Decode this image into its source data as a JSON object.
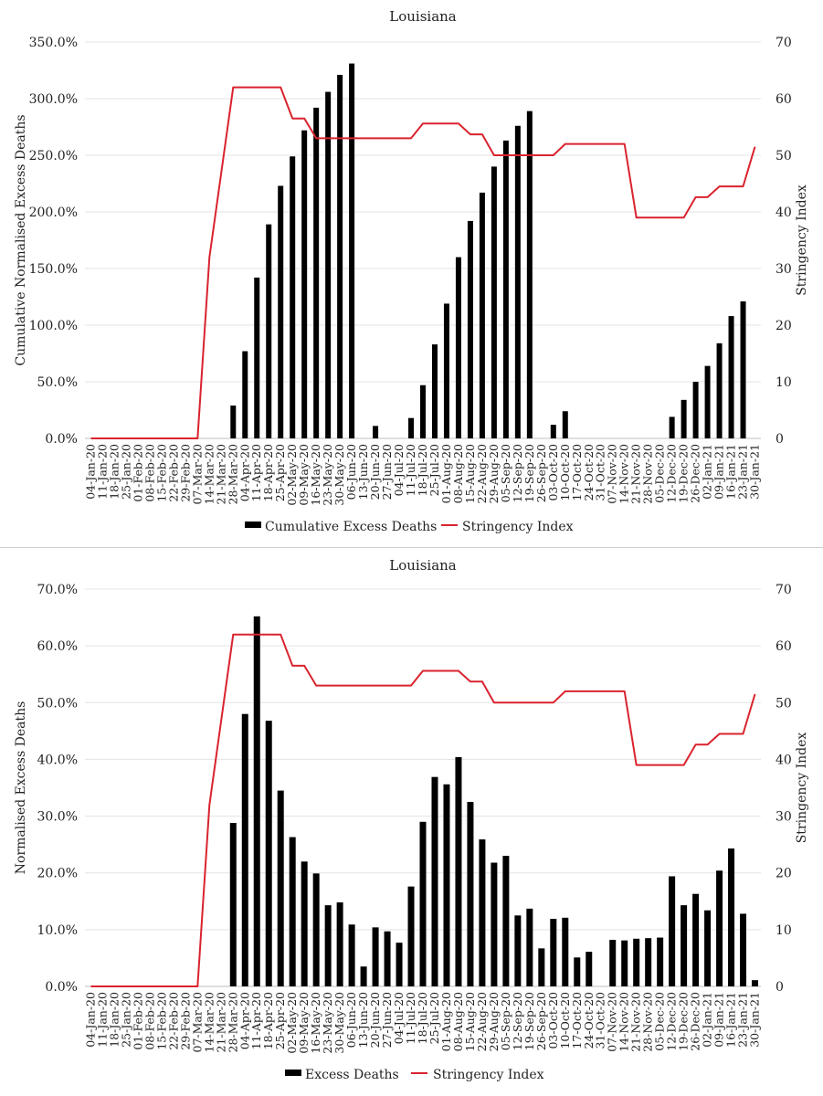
{
  "chart_data": [
    {
      "type": "bar",
      "title": "Louisiana",
      "ylabel": "Cumulative Normalised Excess Deaths",
      "y2label": "Stringency Index",
      "ylim": [
        0,
        350
      ],
      "y2lim": [
        0,
        70
      ],
      "yticks": [
        "0.0%",
        "50.0%",
        "100.0%",
        "150.0%",
        "200.0%",
        "250.0%",
        "300.0%",
        "350.0%"
      ],
      "y2ticks": [
        "0",
        "10",
        "20",
        "30",
        "40",
        "50",
        "60",
        "70"
      ],
      "grid": true,
      "legend": "bottom",
      "categories": [
        "04-Jan-20",
        "11-Jan-20",
        "18-Jan-20",
        "25-Jan-20",
        "01-Feb-20",
        "08-Feb-20",
        "15-Feb-20",
        "22-Feb-20",
        "29-Feb-20",
        "07-Mar-20",
        "14-Mar-20",
        "21-Mar-20",
        "28-Mar-20",
        "04-Apr-20",
        "11-Apr-20",
        "18-Apr-20",
        "25-Apr-20",
        "02-May-20",
        "09-May-20",
        "16-May-20",
        "23-May-20",
        "30-May-20",
        "06-Jun-20",
        "13-Jun-20",
        "20-Jun-20",
        "27-Jun-20",
        "04-Jul-20",
        "11-Jul-20",
        "18-Jul-20",
        "25-Jul-20",
        "01-Aug-20",
        "08-Aug-20",
        "15-Aug-20",
        "22-Aug-20",
        "29-Aug-20",
        "05-Sep-20",
        "12-Sep-20",
        "19-Sep-20",
        "26-Sep-20",
        "03-Oct-20",
        "10-Oct-20",
        "17-Oct-20",
        "24-Oct-20",
        "31-Oct-20",
        "07-Nov-20",
        "14-Nov-20",
        "21-Nov-20",
        "28-Nov-20",
        "05-Dec-20",
        "12-Dec-20",
        "19-Dec-20",
        "26-Dec-20",
        "02-Jan-21",
        "09-Jan-21",
        "16-Jan-21",
        "23-Jan-21",
        "30-Jan-21"
      ],
      "tick_labels": [
        "04-Jan-20",
        "11-Jan-20",
        "18-Jan-20",
        "25-Jan-20",
        "01-Feb-20",
        "08-Feb-20",
        "15-Feb-20",
        "22-Feb-20",
        "29-Feb-20",
        "07-Mar-20",
        "14-Mar-20",
        "21-Mar-20",
        "28-Mar-20",
        "04-Apr-20",
        "11-Apr-20",
        "18-Apr-20",
        "25-Apr-20",
        "02-May-20",
        "09-May-20",
        "16-May-20",
        "23-May-20",
        "30-May-20",
        "06-Jun-20",
        "13-Jun-20",
        "20-Jun-20",
        "27-Jun-20",
        "04-Jul-20",
        "11-Jul-20",
        "18-Jul-20",
        "25-Jul-20",
        "01-Aug-20",
        "08-Aug-20",
        "15-Aug-20",
        "22-Aug-20",
        "29-Aug-20",
        "05-Sep-20",
        "12-Sep-20",
        "19-Sep-20",
        "26-Sep-20",
        "03-Oct-20",
        "10-Oct-20",
        "17-Oct-20",
        "24-Oct-20",
        "31-Oct-20",
        "07-Nov-20",
        "14-Nov-20",
        "21-Nov-20",
        "28-Nov-20",
        "05-Dec-20",
        "12-Dec-20",
        "19-Dec-20",
        "26-Dec-20",
        "02-Jan-21",
        "09-Jan-21",
        "16-Jan-21",
        "23-Jan-21",
        "30-Jan-21"
      ],
      "series": [
        {
          "name": "Cumulative Excess Deaths",
          "kind": "bar",
          "axis": "left",
          "color": "#000000",
          "values": [
            0,
            0,
            0,
            0,
            0,
            0,
            0,
            0,
            0,
            0,
            0,
            0,
            29,
            77,
            142,
            189,
            223,
            249,
            272,
            292,
            306,
            321,
            331,
            0,
            11,
            0,
            0,
            18,
            47,
            83,
            119,
            160,
            192,
            217,
            240,
            263,
            276,
            289,
            0,
            12,
            24,
            0,
            0,
            0,
            0,
            0,
            0,
            0,
            0,
            19,
            34,
            50,
            64,
            84,
            108,
            121,
            0
          ]
        },
        {
          "name": "Stringency Index",
          "kind": "line",
          "axis": "right",
          "color": "#d9232e",
          "values": [
            0,
            0,
            0,
            0,
            0,
            0,
            0,
            0,
            0,
            0,
            32,
            47,
            62,
            62,
            62,
            62,
            62,
            56.5,
            56.5,
            53,
            53,
            53,
            53,
            53,
            53,
            53,
            53,
            53,
            55.6,
            55.6,
            55.6,
            55.6,
            53.7,
            53.7,
            50,
            50,
            50,
            50,
            50,
            50,
            52,
            52,
            52,
            52,
            52,
            52,
            39,
            39,
            39,
            39,
            39,
            42.6,
            42.6,
            44.5,
            44.5,
            44.5,
            51.5
          ]
        }
      ]
    },
    {
      "type": "bar",
      "title": "Louisiana",
      "ylabel": "Normalised Excess Deaths",
      "y2label": "Stringency Index",
      "ylim": [
        0,
        70
      ],
      "y2lim": [
        0,
        70
      ],
      "yticks": [
        "0.0%",
        "10.0%",
        "20.0%",
        "30.0%",
        "40.0%",
        "50.0%",
        "60.0%",
        "70.0%"
      ],
      "y2ticks": [
        "0",
        "10",
        "20",
        "30",
        "40",
        "50",
        "60",
        "70"
      ],
      "grid": true,
      "legend": "bottom",
      "categories": [
        "04-Jan-20",
        "11-Jan-20",
        "18-Jan-20",
        "25-Jan-20",
        "01-Feb-20",
        "08-Feb-20",
        "15-Feb-20",
        "22-Feb-20",
        "29-Feb-20",
        "07-Mar-20",
        "14-Mar-20",
        "21-Mar-20",
        "28-Mar-20",
        "04-Apr-20",
        "11-Apr-20",
        "18-Apr-20",
        "25-Apr-20",
        "02-May-20",
        "09-May-20",
        "16-May-20",
        "23-May-20",
        "30-May-20",
        "06-Jun-20",
        "13-Jun-20",
        "20-Jun-20",
        "27-Jun-20",
        "04-Jul-20",
        "11-Jul-20",
        "18-Jul-20",
        "25-Jul-20",
        "01-Aug-20",
        "08-Aug-20",
        "15-Aug-20",
        "22-Aug-20",
        "29-Aug-20",
        "05-Sep-20",
        "12-Sep-20",
        "19-Sep-20",
        "26-Sep-20",
        "03-Oct-20",
        "10-Oct-20",
        "17-Oct-20",
        "24-Oct-20",
        "31-Oct-20",
        "07-Nov-20",
        "14-Nov-20",
        "21-Nov-20",
        "28-Nov-20",
        "05-Dec-20",
        "12-Dec-20",
        "19-Dec-20",
        "26-Dec-20",
        "02-Jan-21",
        "09-Jan-21",
        "16-Jan-21",
        "23-Jan-21",
        "30-Jan-21"
      ],
      "tick_labels": [
        "04-Jan-20",
        "11-Jan-20",
        "18-Jan-20",
        "25-Jan-20",
        "01-Feb-20",
        "08-Feb-20",
        "15-Feb-20",
        "22-Feb-20",
        "29-Feb-20",
        "07-Mar-20",
        "14-Mar-20",
        "21-Mar-20",
        "28-Mar-20",
        "04-Apr-20",
        "11-Apr-20",
        "18-Apr-20",
        "25-Apr-20",
        "02-May-20",
        "09-May-20",
        "16-May-20",
        "23-May-20",
        "30-May-20",
        "06-Jun-20",
        "13-Jun-20",
        "20-Jun-20",
        "27-Jun-20",
        "04-Jul-20",
        "11-Jul-20",
        "18-Jul-20",
        "25-Jul-20",
        "01-Aug-20",
        "08-Aug-20",
        "15-Aug-20",
        "22-Aug-20",
        "29-Aug-20",
        "05-Sep-20",
        "12-Sep-20",
        "19-Sep-20",
        "26-Sep-20",
        "03-Oct-20",
        "10-Oct-20",
        "17-Oct-20",
        "24-Oct-20",
        "31-Oct-20",
        "07-Nov-20",
        "14-Nov-20",
        "21-Nov-20",
        "28-Nov-20",
        "05-Dec-20",
        "12-Dec-20",
        "19-Dec-20",
        "26-Dec-20",
        "02-Jan-21",
        "09-Jan-21",
        "16-Jan-21",
        "23-Jan-21",
        "30-Jan-21"
      ],
      "series": [
        {
          "name": "Excess Deaths",
          "kind": "bar",
          "axis": "left",
          "color": "#000000",
          "values": [
            0,
            0,
            0,
            0,
            0,
            0,
            0,
            0,
            0,
            0,
            0,
            0,
            28.8,
            48,
            65.2,
            46.8,
            34.5,
            26.3,
            22,
            19.9,
            14.3,
            14.8,
            10.9,
            3.5,
            10.4,
            9.7,
            7.7,
            17.6,
            29,
            36.9,
            35.6,
            40.4,
            32.5,
            25.9,
            21.8,
            23,
            12.5,
            13.7,
            6.7,
            11.9,
            12.1,
            5.1,
            6.1,
            0,
            8.2,
            8.1,
            8.4,
            8.5,
            8.6,
            19.4,
            14.3,
            16.3,
            13.4,
            20.4,
            24.3,
            12.8,
            1.1
          ]
        },
        {
          "name": "Stringency Index",
          "kind": "line",
          "axis": "right",
          "color": "#d9232e",
          "values": [
            0,
            0,
            0,
            0,
            0,
            0,
            0,
            0,
            0,
            0,
            32,
            47,
            62,
            62,
            62,
            62,
            62,
            56.5,
            56.5,
            53,
            53,
            53,
            53,
            53,
            53,
            53,
            53,
            53,
            55.6,
            55.6,
            55.6,
            55.6,
            53.7,
            53.7,
            50,
            50,
            50,
            50,
            50,
            50,
            52,
            52,
            52,
            52,
            52,
            52,
            39,
            39,
            39,
            39,
            39,
            42.6,
            42.6,
            44.5,
            44.5,
            44.5,
            51.5
          ]
        }
      ]
    }
  ]
}
